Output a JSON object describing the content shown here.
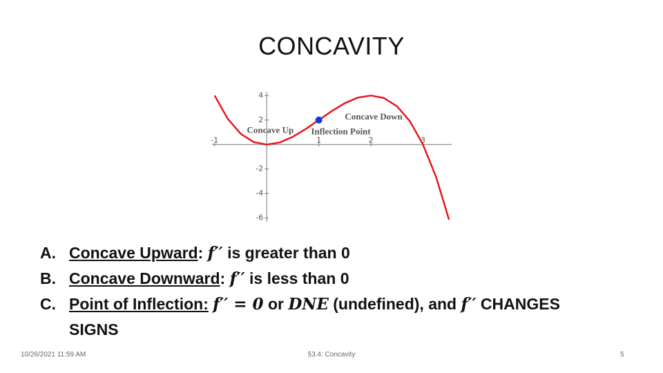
{
  "title": "CONCAVITY",
  "chart_data": {
    "type": "line",
    "x": [
      -1,
      -0.75,
      -0.5,
      -0.25,
      0,
      0.25,
      0.5,
      0.75,
      1,
      1.25,
      1.5,
      1.75,
      2,
      2.25,
      2.5,
      2.75,
      3,
      3.25,
      3.5
    ],
    "series": [
      {
        "color": "#e8141b",
        "values": [
          4,
          2.11,
          0.88,
          0.2,
          0,
          0.17,
          0.63,
          1.27,
          2,
          2.73,
          3.38,
          3.83,
          4,
          3.8,
          3.13,
          1.89,
          0,
          -2.64,
          -6.13
        ]
      }
    ],
    "xlim": [
      -1.05,
      3.55
    ],
    "ylim": [
      -6.3,
      4.3
    ],
    "xticks": [
      -1,
      1,
      2,
      3
    ],
    "yticks": [
      4,
      2,
      -2,
      -4,
      -6
    ],
    "marker": {
      "x": 1,
      "y": 2,
      "color": "#1436e0"
    },
    "annotations": [
      {
        "text": "Concave Up",
        "x": -0.38,
        "y": 1.1,
        "color": "#1a9a1a"
      },
      {
        "text": "Concave Down",
        "x": 1.5,
        "y": 2.2,
        "color": "#8a2a9a"
      },
      {
        "text": "Inflection Point",
        "x": 0.85,
        "y": 1.0,
        "color": "#1436e0"
      }
    ]
  },
  "items": [
    {
      "letter": "A.",
      "segments": [
        {
          "text": "Concave Upward",
          "u": true
        },
        {
          "text": ": "
        },
        {
          "text": "f′′",
          "math": true
        },
        {
          "text": " is greater than 0"
        }
      ]
    },
    {
      "letter": "B.",
      "segments": [
        {
          "text": "Concave Downward",
          "u": true
        },
        {
          "text": ": "
        },
        {
          "text": "f′′",
          "math": true
        },
        {
          "text": " is less than 0"
        }
      ]
    },
    {
      "letter": "C.",
      "segments": [
        {
          "text": "Point of Inflection:",
          "u": true
        },
        {
          "text": " "
        },
        {
          "text": "f′′ = 0",
          "math": true
        },
        {
          "text": " or "
        },
        {
          "text": "DNE",
          "math": true
        },
        {
          "text": " (undefined), and "
        },
        {
          "text": "f′′",
          "math": true
        },
        {
          "text": " CHANGES SIGNS"
        }
      ]
    }
  ],
  "footer": {
    "date": "10/26/2021 11:59 AM",
    "section": "§3.4: Concavity",
    "page": "5"
  }
}
